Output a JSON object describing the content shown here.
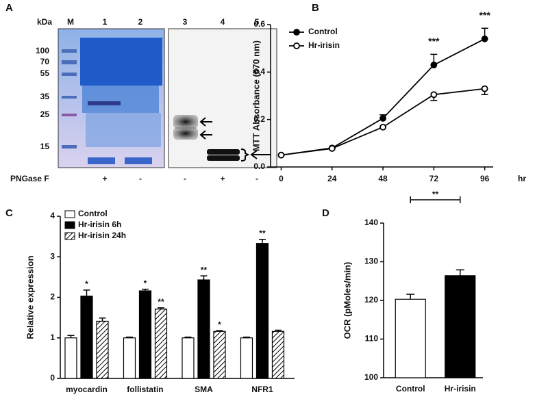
{
  "gel": {
    "panel_label": "A",
    "unit": "kDa",
    "lanes": [
      "M",
      "1",
      "2",
      "3",
      "4",
      "5"
    ],
    "markers": [
      "100",
      "70",
      "55",
      "35",
      "25",
      "15"
    ],
    "treatment": "PNGase F",
    "signs": [
      "+",
      "-",
      "-",
      "+",
      "-"
    ]
  },
  "chart_data": [
    {
      "type": "line",
      "panel_label": "B",
      "x": [
        0,
        24,
        48,
        72,
        96
      ],
      "xlabel": "hr",
      "ylabel": "MTT Absorbance (570 nm)",
      "xlim": [
        -5,
        100
      ],
      "xticks": [
        0,
        24,
        48,
        72,
        96
      ],
      "ylim": [
        0,
        0.6
      ],
      "yticks": [
        {
          "value": 0,
          "label": "0.0"
        },
        0.2,
        0.4,
        0.6
      ],
      "series": [
        {
          "name": "Control",
          "color": "#000000",
          "filled": true,
          "values": [
            0.05,
            0.08,
            0.205,
            0.43,
            0.54
          ],
          "errors": [
            0,
            0,
            0.015,
            0.045,
            0.045
          ]
        },
        {
          "name": "Hr-irisin",
          "color": "#000000",
          "filled": false,
          "values": [
            0.05,
            0.078,
            0.168,
            0.305,
            0.33
          ],
          "errors": [
            0,
            0,
            0,
            0.025,
            0.025
          ]
        }
      ],
      "annotations": [
        {
          "text": "***",
          "x": 72
        },
        {
          "text": "***",
          "x": 96
        }
      ]
    },
    {
      "type": "grouped_bar",
      "panel_label": "C",
      "categories": [
        "myocardin",
        "follistatin",
        "SMA",
        "NFR1"
      ],
      "ylabel": "Relative expression",
      "ylim": [
        0,
        4
      ],
      "yticks": [
        0,
        1,
        2,
        3,
        4
      ],
      "series": [
        {
          "name": "Control",
          "color": "#ffffff",
          "hatch": false,
          "values": [
            1,
            1,
            1,
            1
          ],
          "errors": [
            0.06,
            0.02,
            0.02,
            0.02
          ],
          "significance": [
            null,
            null,
            null,
            null
          ]
        },
        {
          "name": "Hr-irisin 6h",
          "color": "#000000",
          "hatch": false,
          "values": [
            2.03,
            2.16,
            2.43,
            3.33
          ],
          "errors": [
            0.15,
            0.04,
            0.1,
            0.1
          ],
          "significance": [
            "*",
            "*",
            "**",
            "**"
          ]
        },
        {
          "name": "Hr-irisin 24h",
          "color": "#ffffff",
          "hatch": true,
          "values": [
            1.41,
            1.71,
            1.16,
            1.16
          ],
          "errors": [
            0.08,
            0.03,
            0.02,
            0.03
          ],
          "significance": [
            null,
            "**",
            "*",
            null
          ]
        }
      ]
    },
    {
      "type": "bar",
      "panel_label": "D",
      "categories": [
        "Control",
        "Hr-irisin"
      ],
      "ylabel": "OCR (pMoles/min)",
      "values": [
        120.3,
        126.4
      ],
      "errors": [
        1.3,
        1.5
      ],
      "colors": [
        "#ffffff",
        "#000000"
      ],
      "ylim": [
        100,
        140
      ],
      "yticks": [
        100,
        110,
        120,
        130,
        140
      ],
      "annotations": [
        {
          "text": "**"
        }
      ]
    }
  ]
}
